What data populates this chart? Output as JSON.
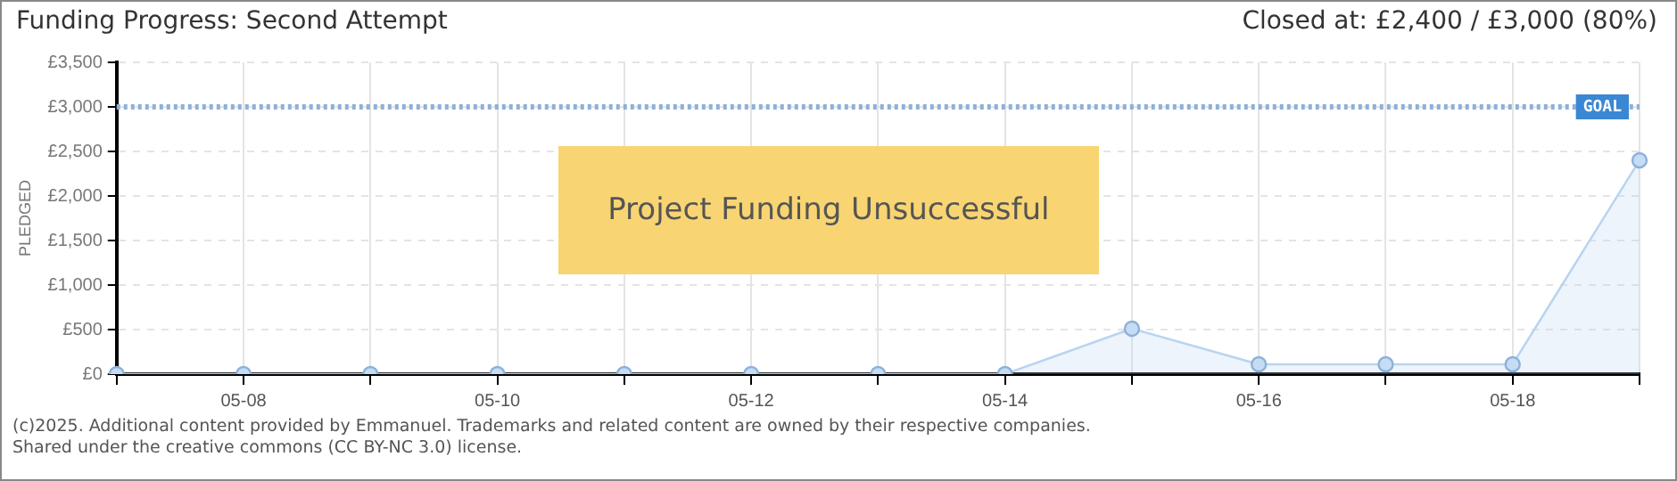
{
  "chart_data": {
    "type": "area",
    "title": "Funding Progress: Second Attempt",
    "ylabel": "PLEDGED",
    "categories": [
      null,
      "05-08",
      null,
      "05-10",
      null,
      "05-12",
      null,
      "05-14",
      null,
      "05-16",
      null,
      "05-18",
      null
    ],
    "series": [
      {
        "color": "#b8d4f0",
        "values": [
          0,
          0,
          0,
          0,
          0,
          0,
          0,
          0,
          510,
          110,
          110,
          110,
          2400
        ]
      }
    ],
    "ylim": [
      0,
      3500
    ],
    "yticks": [
      {
        "value": 0,
        "label": "£0"
      },
      {
        "value": 500,
        "label": "£500"
      },
      {
        "value": 1000,
        "label": "£1,000"
      },
      {
        "value": 1500,
        "label": "£1,500"
      },
      {
        "value": 2000,
        "label": "£2,000"
      },
      {
        "value": 2500,
        "label": "£2,500"
      },
      {
        "value": 3000,
        "label": "£3,000"
      },
      {
        "value": 3500,
        "label": "£3,500"
      }
    ],
    "ref_lines": [
      {
        "axis": "y",
        "value": 3000,
        "label": "GOAL",
        "color": "#8fb0d8",
        "line_style": "dotted"
      }
    ],
    "annotations": [
      "Closed at:  £2,400 / £3,000 (80%)",
      "Project Funding Unsuccessful",
      "(c)2025. Additional content provided by Emmanuel. Trademarks and related content are owned by their respective companies.",
      "Shared under the creative commons (CC BY-NC 3.0) license."
    ],
    "grid": true,
    "legend": false,
    "marker": "circle",
    "line_style": "solid"
  }
}
